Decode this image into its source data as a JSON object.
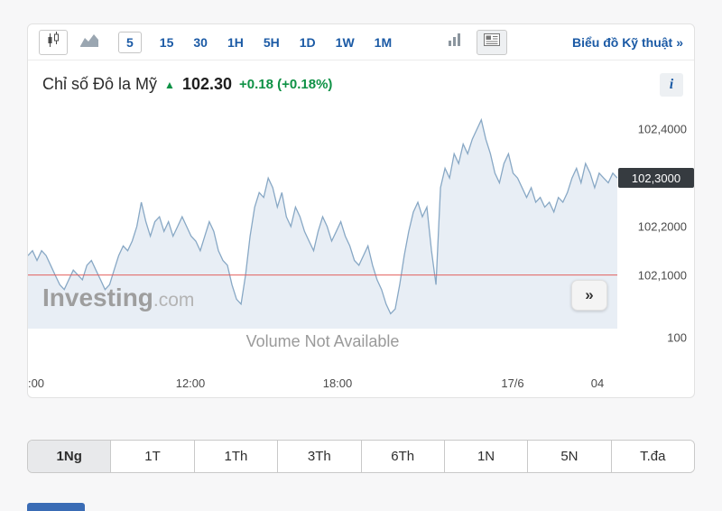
{
  "toolbar": {
    "intervals": [
      {
        "label": "5",
        "active": true
      },
      {
        "label": "15",
        "active": false
      },
      {
        "label": "30",
        "active": false
      },
      {
        "label": "1H",
        "active": false
      },
      {
        "label": "5H",
        "active": false
      },
      {
        "label": "1D",
        "active": false
      },
      {
        "label": "1W",
        "active": false
      },
      {
        "label": "1M",
        "active": false
      }
    ],
    "icons": [
      "candlestick-chart-icon",
      "line-chart-icon",
      "bar-chart-icon",
      "news-panel-icon"
    ],
    "technical_link": "Biểu đồ Kỹ thuật",
    "technical_chevron": "»"
  },
  "header": {
    "title": "Chỉ số Đô la Mỹ",
    "arrow": "▲",
    "price": "102.30",
    "change": "+0.18 (+0.18%)",
    "info_label": "i"
  },
  "chart_data": {
    "type": "area",
    "title": "Chỉ số Đô la Mỹ (US Dollar Index), 5-minute",
    "values": [
      102.14,
      102.15,
      102.13,
      102.15,
      102.14,
      102.12,
      102.1,
      102.08,
      102.07,
      102.09,
      102.11,
      102.1,
      102.09,
      102.12,
      102.13,
      102.11,
      102.09,
      102.07,
      102.08,
      102.11,
      102.14,
      102.16,
      102.15,
      102.17,
      102.2,
      102.25,
      102.21,
      102.18,
      102.21,
      102.22,
      102.19,
      102.21,
      102.18,
      102.2,
      102.22,
      102.2,
      102.18,
      102.17,
      102.15,
      102.18,
      102.21,
      102.19,
      102.15,
      102.13,
      102.12,
      102.08,
      102.05,
      102.04,
      102.1,
      102.18,
      102.24,
      102.27,
      102.26,
      102.3,
      102.28,
      102.24,
      102.27,
      102.22,
      102.2,
      102.24,
      102.22,
      102.19,
      102.17,
      102.15,
      102.19,
      102.22,
      102.2,
      102.17,
      102.19,
      102.21,
      102.18,
      102.16,
      102.13,
      102.12,
      102.14,
      102.16,
      102.12,
      102.09,
      102.07,
      102.04,
      102.02,
      102.03,
      102.08,
      102.14,
      102.19,
      102.23,
      102.25,
      102.22,
      102.24,
      102.15,
      102.08,
      102.28,
      102.32,
      102.3,
      102.35,
      102.33,
      102.37,
      102.35,
      102.38,
      102.4,
      102.42,
      102.38,
      102.35,
      102.31,
      102.29,
      102.33,
      102.35,
      102.31,
      102.3,
      102.28,
      102.26,
      102.28,
      102.25,
      102.26,
      102.24,
      102.25,
      102.23,
      102.26,
      102.25,
      102.27,
      102.3,
      102.32,
      102.29,
      102.33,
      102.31,
      102.28,
      102.31,
      102.3,
      102.29,
      102.31,
      102.3
    ],
    "ylim": [
      101.95,
      102.44
    ],
    "yticks": [
      {
        "label": "102,4000",
        "value": 102.4
      },
      {
        "label": "102,3000",
        "value": 102.3
      },
      {
        "label": "102,2000",
        "value": 102.2
      },
      {
        "label": "102,1000",
        "value": 102.1
      },
      {
        "label": "100",
        "value": null
      }
    ],
    "xticks": [
      ":00",
      "12:00",
      "18:00",
      "17/6",
      "04"
    ],
    "prev_close": 102.1,
    "last_price": 102.3,
    "last_price_label": "102,3000",
    "watermark_bold": "Investing",
    "watermark_light": ".com",
    "volume_text": "Volume Not Available",
    "expand_glyph": "»",
    "line_color": "#88a8c5",
    "fill_color": "#e8eef5",
    "prev_close_color": "#e2605e",
    "badge_bg": "#363b40"
  },
  "timeframes": [
    {
      "label": "1Ng",
      "active": true
    },
    {
      "label": "1T",
      "active": false
    },
    {
      "label": "1Th",
      "active": false
    },
    {
      "label": "3Th",
      "active": false
    },
    {
      "label": "6Th",
      "active": false
    },
    {
      "label": "1N",
      "active": false
    },
    {
      "label": "5N",
      "active": false
    },
    {
      "label": "T.đa",
      "active": false
    }
  ]
}
